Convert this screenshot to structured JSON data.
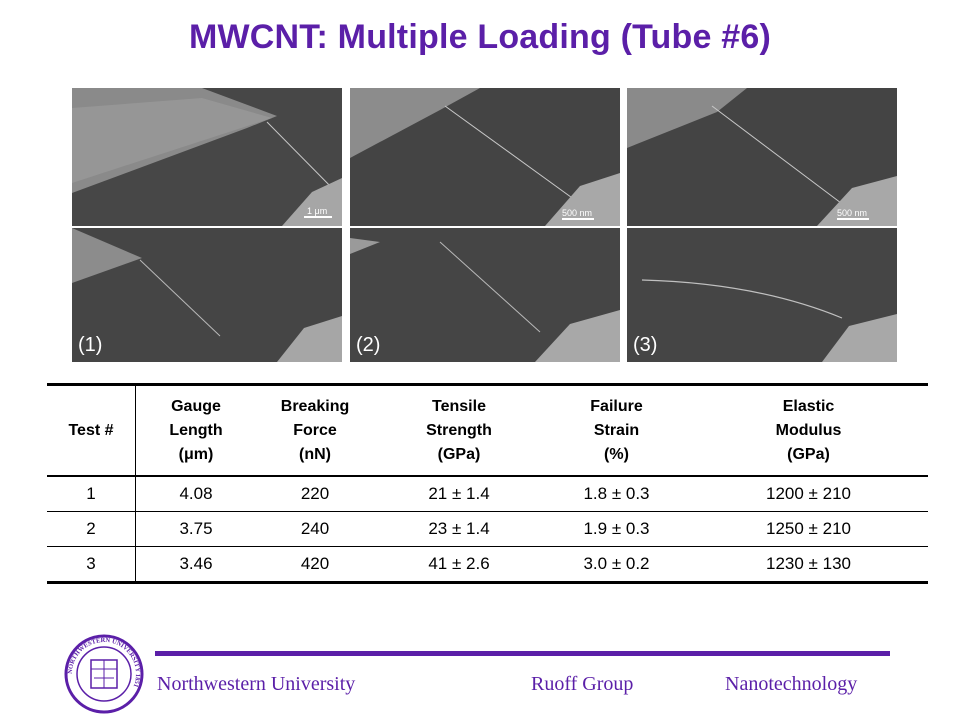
{
  "title": "MWCNT: Multiple Loading (Tube #6)",
  "images": {
    "panel_labels": [
      "(1)",
      "(2)",
      "(3)"
    ],
    "scale_bars": [
      "1 μm",
      "500 nm",
      "500 nm"
    ]
  },
  "table": {
    "headers": [
      {
        "l1": "Test #",
        "l2": "",
        "l3": ""
      },
      {
        "l1": "Gauge",
        "l2": "Length",
        "l3": "(μm)"
      },
      {
        "l1": "Breaking",
        "l2": "Force",
        "l3": "(nN)"
      },
      {
        "l1": "Tensile",
        "l2": "Strength",
        "l3": "(GPa)"
      },
      {
        "l1": "Failure",
        "l2": "Strain",
        "l3": "(%)"
      },
      {
        "l1": "Elastic",
        "l2": "Modulus",
        "l3": "(GPa)"
      }
    ],
    "rows": [
      [
        "1",
        "4.08",
        "220",
        "21 ± 1.4",
        "1.8 ± 0.3",
        "1200 ± 210"
      ],
      [
        "2",
        "3.75",
        "240",
        "23 ± 1.4",
        "1.9 ± 0.3",
        "1250 ± 210"
      ],
      [
        "3",
        "3.46",
        "420",
        "41 ± 2.6",
        "3.0 ± 0.2",
        "1230 ± 130"
      ]
    ]
  },
  "footer": {
    "left": "Northwestern University",
    "center": "Ruoff Group",
    "right": "Nanotechnology",
    "seal_text": "NORTHWESTERN UNIVERSITY 1851"
  },
  "colors": {
    "accent": "#5b1fa8"
  }
}
